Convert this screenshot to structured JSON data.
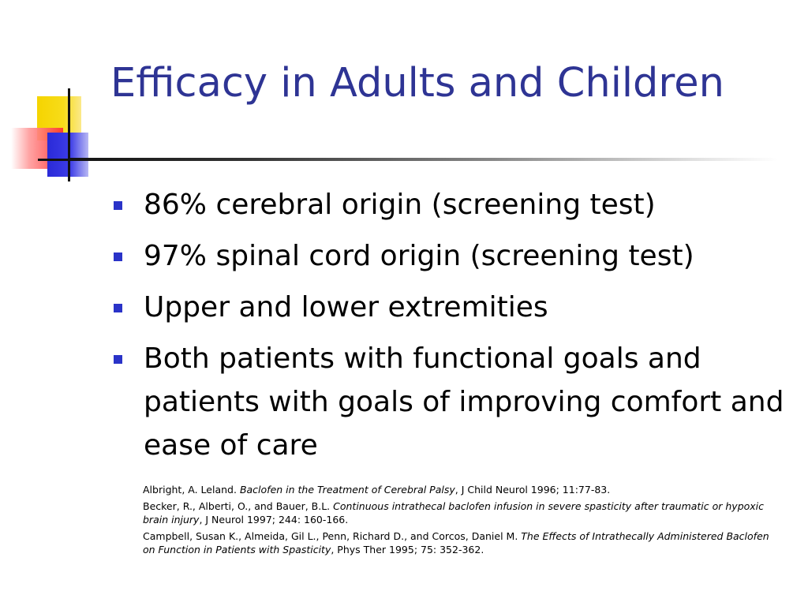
{
  "slide": {
    "title": "Efficacy in Adults and Children",
    "bullets": [
      "86% cerebral origin (screening test)",
      "97% spinal cord origin (screening test)",
      "Upper and lower extremities",
      "Both patients with functional goals and patients with goals of improving comfort and ease of care"
    ],
    "references": [
      {
        "authors": "Albright, A. Leland. ",
        "title": "Baclofen in the Treatment of Cerebral Palsy",
        "source": ", J Child Neurol 1996; 11:77-83."
      },
      {
        "authors": "Becker, R., Alberti, O.,  and Bauer, B.L. ",
        "title": "Continuous intrathecal baclofen infusion in severe spasticity after traumatic or hypoxic brain injury",
        "source": ", J Neurol 1997; 244: 160-166."
      },
      {
        "authors": "Campbell, Susan K., Almeida, Gil L., Penn, Richard D., and Corcos, Daniel M. ",
        "title": "The Effects of Intrathecally Administered Baclofen on Function in Patients with Spasticity",
        "source": ", Phys Ther 1995; 75: 352-362."
      }
    ]
  },
  "colors": {
    "title": "#2e3494",
    "bullet_marker": "#2a33c8",
    "body_text": "#000000",
    "logo_yellow": "#f5d400",
    "logo_red": "#ff3030",
    "logo_blue": "#2a2ad8"
  },
  "icons": {
    "logo": "decorative-squares-logo",
    "bullet": "square-bullet-icon"
  }
}
